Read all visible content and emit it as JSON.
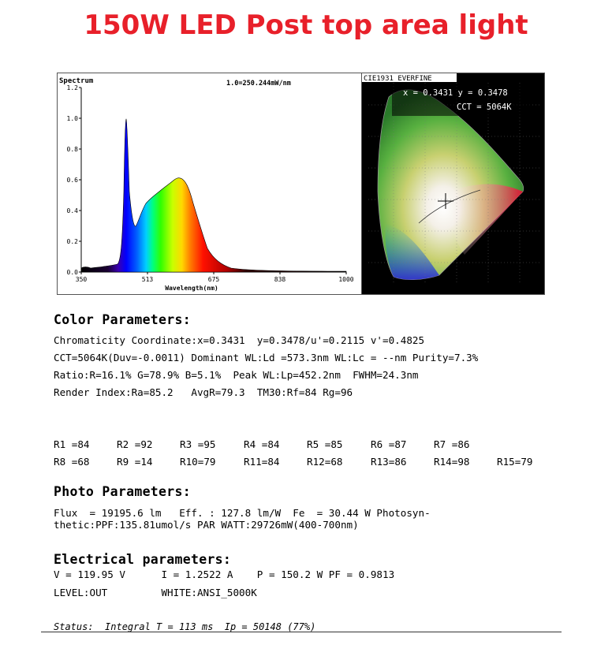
{
  "title": "150W LED Post top area light",
  "spectrum": {
    "label": "Spectrum",
    "scale": "1.0=250.244mW/nm",
    "xlabel": "Wavelength(nm)",
    "xticks": [
      "350",
      "513",
      "675",
      "838",
      "1000"
    ],
    "yticks": [
      "0.0",
      "0.2",
      "0.4",
      "0.6",
      "0.8",
      "1.0",
      "1.2"
    ]
  },
  "cie": {
    "header": "CIE1931 EVERFINE",
    "coords": "x = 0.3431  y = 0.3478",
    "cct": "CCT = 5064K"
  },
  "color": {
    "heading": "Color Parameters:",
    "lines": [
      "Chromaticity Coordinate:x=0.3431  y=0.3478/u'=0.2115 v'=0.4825",
      "CCT=5064K(Duv=-0.0011) Dominant WL:Ld =573.3nm WL:Lc = --nm Purity=7.3%",
      "Ratio:R=16.1% G=78.9% B=5.1%  Peak WL:Lp=452.2nm  FWHM=24.3nm",
      "Render Index:Ra=85.2   AvgR=79.3  TM30:Rf=84 Rg=96"
    ]
  },
  "render": {
    "row1": [
      "R1 =84",
      "R2 =92",
      "R3 =95",
      "R4 =84",
      "R5 =85",
      "R6 =87",
      "R7 =86"
    ],
    "row2": [
      "R8 =68",
      "R9 =14",
      "R10=79",
      "R11=84",
      "R12=68",
      "R13=86",
      "R14=98",
      "R15=79"
    ]
  },
  "photo": {
    "heading": "Photo Parameters:",
    "line1": "Flux  = 19195.6 lm   Eff. : 127.8 lm/W  Fe  = 30.44 W Photosyn-",
    "line2": "thetic:PPF:135.81umol/s PAR WATT:29726mW(400-700nm)"
  },
  "electrical": {
    "heading": "Electrical parameters:",
    "line1": "V = 119.95 V      I = 1.2522 A    P = 150.2 W PF = 0.9813",
    "line2": "LEVEL:OUT         WHITE:ANSI_5000K"
  },
  "status": "Status:  Integral T = 113 ms  Ip = 50148 (77%)",
  "colors": {
    "title": "#e8202a"
  }
}
